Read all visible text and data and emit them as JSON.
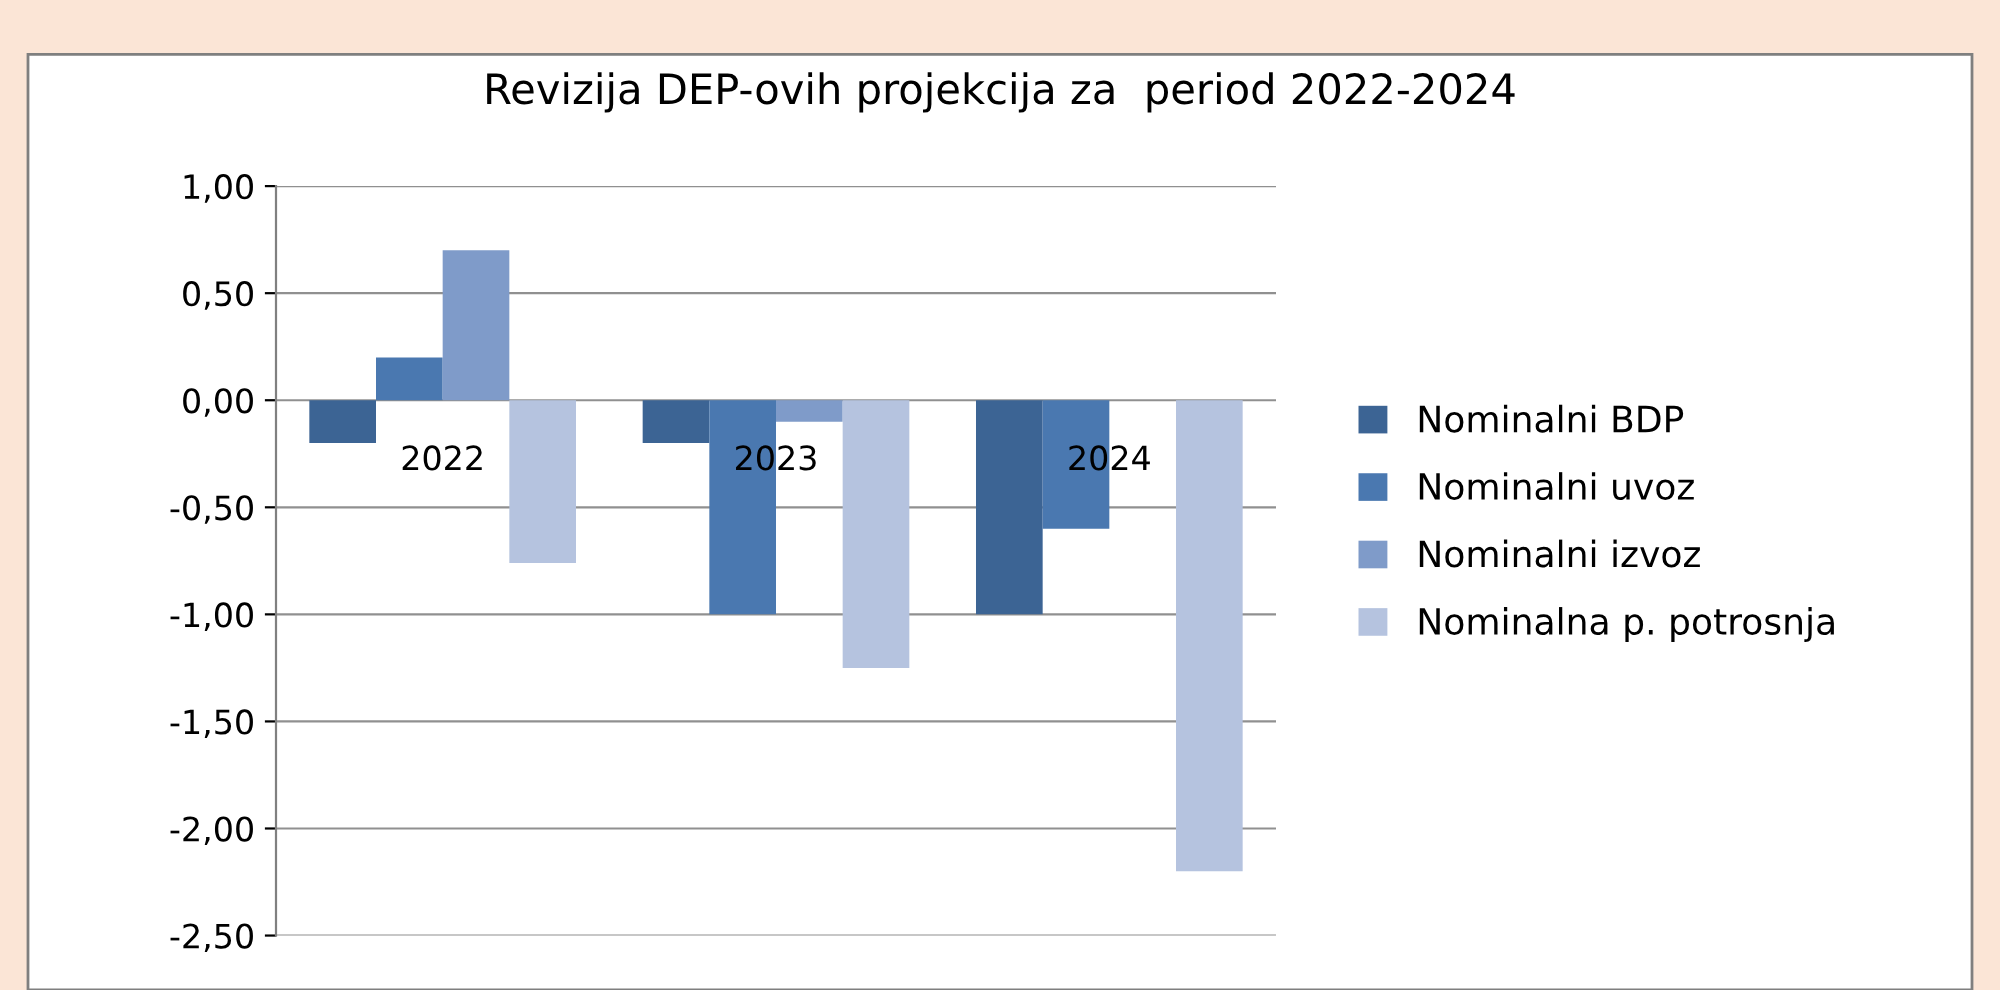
{
  "chart_data": {
    "type": "bar",
    "title": "Revizija DEP-ovih projekcija za  period 2022-2024",
    "categories": [
      "2022",
      "2023",
      "2024"
    ],
    "series": [
      {
        "name": "Nominalni BDP",
        "color": "#3c6494",
        "values": [
          -0.2,
          -0.2,
          -1.0
        ]
      },
      {
        "name": "Nominalni uvoz",
        "color": "#4a78b0",
        "values": [
          0.2,
          -1.0,
          -0.6
        ]
      },
      {
        "name": "Nominalni izvoz",
        "color": "#7f9bc9",
        "values": [
          0.7,
          -0.1,
          0
        ]
      },
      {
        "name": "Nominalna p. potrosnja",
        "color": "#b5c3df",
        "values": [
          -0.76,
          -1.25,
          -2.2
        ]
      }
    ],
    "ylim": [
      -2.5,
      1.0
    ],
    "yticks": [
      {
        "value": 1.0,
        "label": "1,00"
      },
      {
        "value": 0.5,
        "label": "0,50"
      },
      {
        "value": 0,
        "label": "0,00"
      },
      {
        "value": -0.5,
        "label": "-0,50"
      },
      {
        "value": -1.0,
        "label": "-1,00"
      },
      {
        "value": -1.5,
        "label": "-1,50"
      },
      {
        "value": -2.0,
        "label": "-2,00"
      },
      {
        "value": -2.5,
        "label": "-2,50"
      }
    ],
    "grid": "y",
    "legend": "right"
  }
}
